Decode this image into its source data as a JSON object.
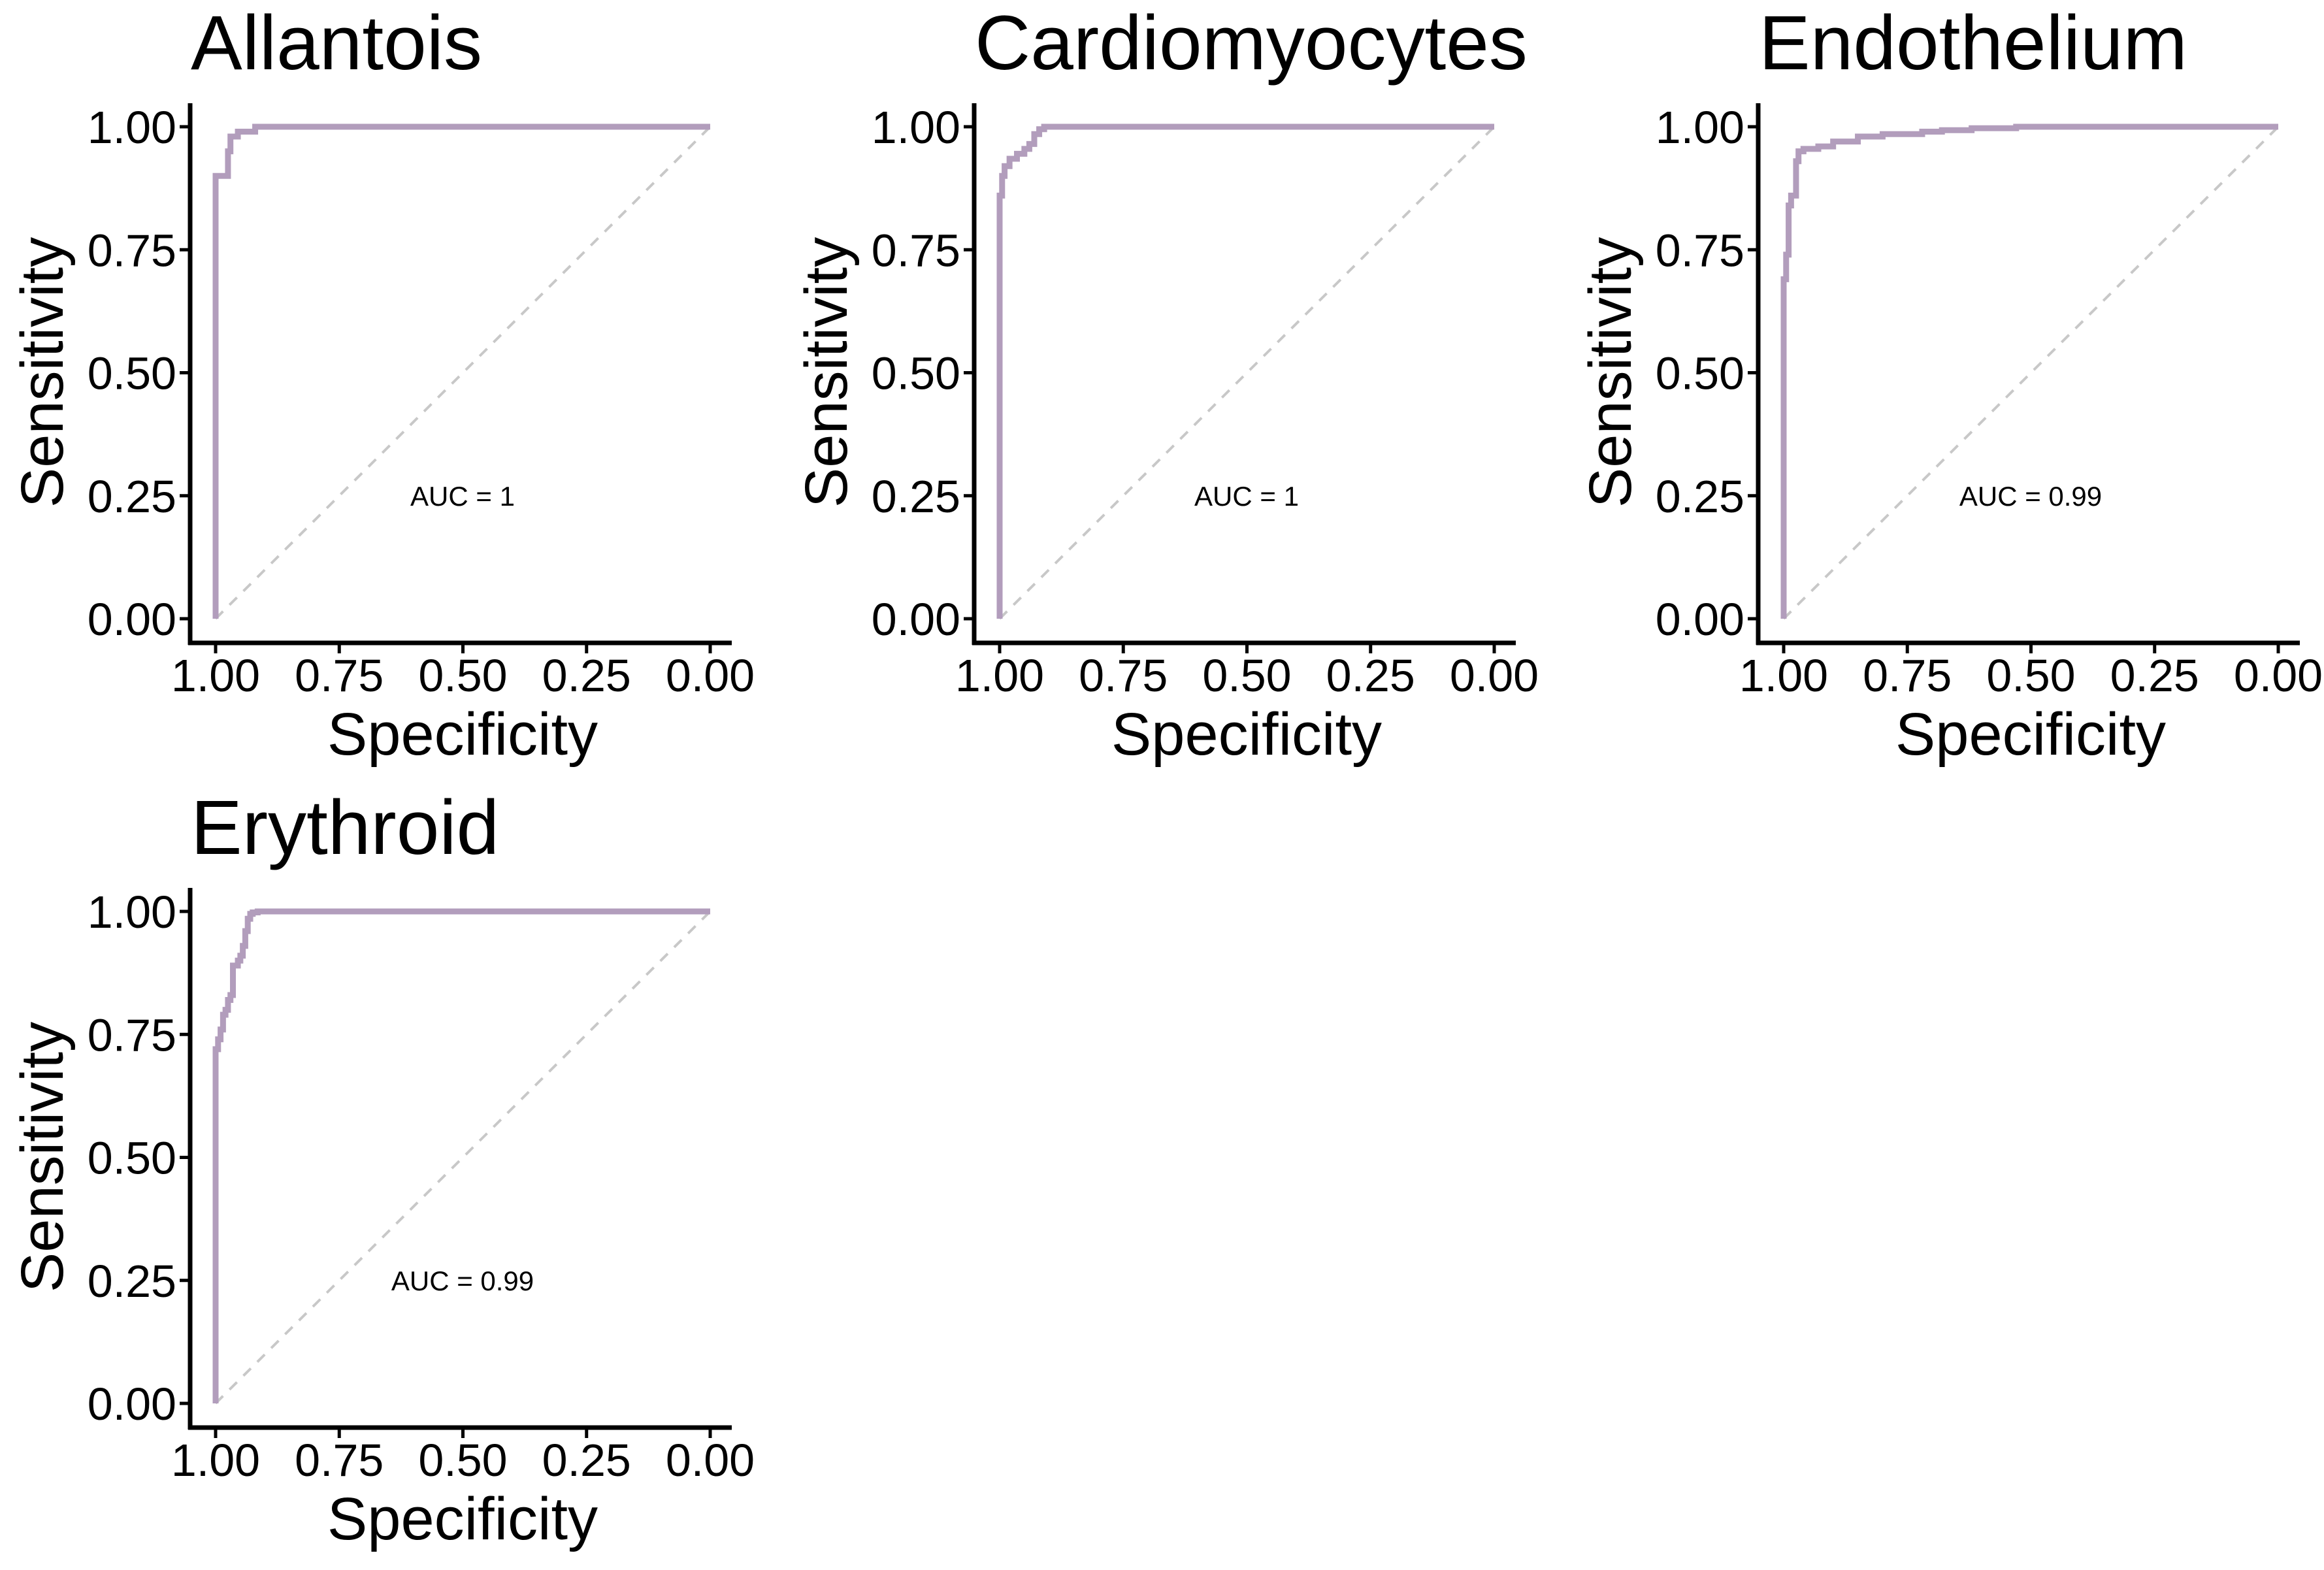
{
  "chart_data": [
    {
      "type": "line",
      "title": "Allantois",
      "xlabel": "Specificity",
      "ylabel": "Sensitivity",
      "xlim": [
        1.0,
        0.0
      ],
      "ylim": [
        0.0,
        1.0
      ],
      "x_reversed": true,
      "x_ticks": [
        "1.00",
        "0.75",
        "0.50",
        "0.25",
        "0.00"
      ],
      "y_ticks": [
        "0.00",
        "0.25",
        "0.50",
        "0.75",
        "1.00"
      ],
      "grid": false,
      "annotation": "AUC = 1",
      "reference_line": "diagonal",
      "series": [
        {
          "color": "#b29dbc",
          "specificity": [
            1.0,
            1.0,
            0.975,
            0.975,
            0.97,
            0.97,
            0.955,
            0.955,
            0.92,
            0.92,
            0.905,
            0.905,
            0.0
          ],
          "sensitivity": [
            0.0,
            0.9,
            0.9,
            0.95,
            0.95,
            0.98,
            0.98,
            0.99,
            0.99,
            1.0,
            1.0,
            1.0,
            1.0
          ]
        }
      ]
    },
    {
      "type": "line",
      "title": "Cardiomyocytes",
      "xlabel": "Specificity",
      "ylabel": "Sensitivity",
      "xlim": [
        1.0,
        0.0
      ],
      "ylim": [
        0.0,
        1.0
      ],
      "x_reversed": true,
      "x_ticks": [
        "1.00",
        "0.75",
        "0.50",
        "0.25",
        "0.00"
      ],
      "y_ticks": [
        "0.00",
        "0.25",
        "0.50",
        "0.75",
        "1.00"
      ],
      "grid": false,
      "annotation": "AUC = 1",
      "reference_line": "diagonal",
      "series": [
        {
          "color": "#b29dbc",
          "specificity": [
            1.0,
            1.0,
            0.995,
            0.995,
            0.99,
            0.99,
            0.98,
            0.98,
            0.965,
            0.965,
            0.95,
            0.95,
            0.94,
            0.94,
            0.93,
            0.93,
            0.92,
            0.92,
            0.91,
            0.91,
            0.0
          ],
          "sensitivity": [
            0.0,
            0.86,
            0.86,
            0.9,
            0.9,
            0.92,
            0.92,
            0.935,
            0.935,
            0.945,
            0.945,
            0.955,
            0.955,
            0.965,
            0.965,
            0.985,
            0.985,
            0.995,
            0.995,
            1.0,
            1.0
          ]
        }
      ]
    },
    {
      "type": "line",
      "title": "Endothelium",
      "xlabel": "Specificity",
      "ylabel": "Sensitivity",
      "xlim": [
        1.0,
        0.0
      ],
      "ylim": [
        0.0,
        1.0
      ],
      "x_reversed": true,
      "x_ticks": [
        "1.00",
        "0.75",
        "0.50",
        "0.25",
        "0.00"
      ],
      "y_ticks": [
        "0.00",
        "0.25",
        "0.50",
        "0.75",
        "1.00"
      ],
      "grid": false,
      "annotation": "AUC = 0.99",
      "reference_line": "diagonal",
      "series": [
        {
          "color": "#b29dbc",
          "specificity": [
            1.0,
            1.0,
            0.995,
            0.995,
            0.99,
            0.99,
            0.985,
            0.985,
            0.975,
            0.975,
            0.97,
            0.97,
            0.96,
            0.96,
            0.93,
            0.93,
            0.9,
            0.9,
            0.85,
            0.85,
            0.8,
            0.8,
            0.72,
            0.72,
            0.68,
            0.68,
            0.62,
            0.62,
            0.53,
            0.53,
            0.0
          ],
          "sensitivity": [
            0.0,
            0.69,
            0.69,
            0.74,
            0.74,
            0.84,
            0.84,
            0.86,
            0.86,
            0.93,
            0.93,
            0.95,
            0.95,
            0.955,
            0.955,
            0.96,
            0.96,
            0.97,
            0.97,
            0.98,
            0.98,
            0.985,
            0.985,
            0.99,
            0.99,
            0.993,
            0.993,
            0.997,
            0.997,
            1.0,
            1.0
          ]
        }
      ]
    },
    {
      "type": "line",
      "title": "Erythroid",
      "xlabel": "Specificity",
      "ylabel": "Sensitivity",
      "xlim": [
        1.0,
        0.0
      ],
      "ylim": [
        0.0,
        1.0
      ],
      "x_reversed": true,
      "x_ticks": [
        "1.00",
        "0.75",
        "0.50",
        "0.25",
        "0.00"
      ],
      "y_ticks": [
        "0.00",
        "0.25",
        "0.50",
        "0.75",
        "1.00"
      ],
      "grid": false,
      "annotation": "AUC = 0.99",
      "reference_line": "diagonal",
      "series": [
        {
          "color": "#b29dbc",
          "specificity": [
            1.0,
            1.0,
            0.995,
            0.995,
            0.99,
            0.99,
            0.985,
            0.985,
            0.98,
            0.98,
            0.975,
            0.975,
            0.97,
            0.97,
            0.965,
            0.965,
            0.955,
            0.955,
            0.95,
            0.95,
            0.945,
            0.945,
            0.94,
            0.94,
            0.935,
            0.935,
            0.93,
            0.93,
            0.925,
            0.925,
            0.915,
            0.915,
            0.9,
            0.9,
            0.0
          ],
          "sensitivity": [
            0.0,
            0.72,
            0.72,
            0.74,
            0.74,
            0.76,
            0.76,
            0.79,
            0.79,
            0.8,
            0.8,
            0.82,
            0.82,
            0.83,
            0.83,
            0.89,
            0.89,
            0.9,
            0.9,
            0.91,
            0.91,
            0.93,
            0.93,
            0.96,
            0.96,
            0.985,
            0.985,
            0.995,
            0.995,
            0.998,
            0.998,
            1.0,
            1.0,
            1.0,
            1.0
          ]
        }
      ]
    }
  ]
}
